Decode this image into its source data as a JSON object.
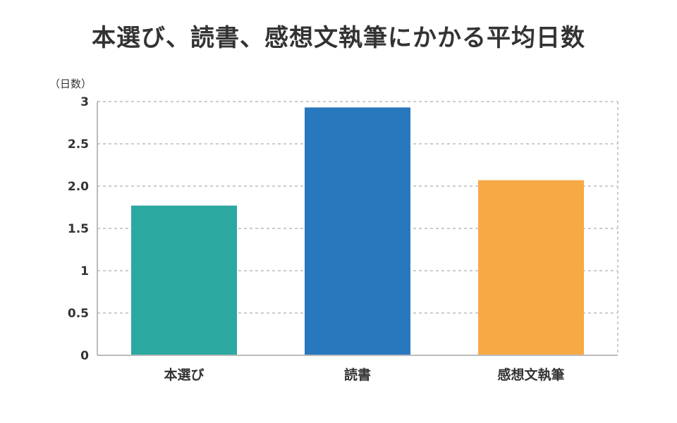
{
  "chart_data": {
    "type": "bar",
    "title": "本選び、読書、感想文執筆にかかる平均日数",
    "ylabel": "（日数）",
    "xlabel": "",
    "categories": [
      "本選び",
      "読書",
      "感想文執筆"
    ],
    "values": [
      1.77,
      2.93,
      2.07
    ],
    "colors": [
      "#2ba8a0",
      "#2878be",
      "#f6a945"
    ],
    "ylim": [
      0,
      3
    ],
    "yticks": [
      "0",
      "0.5",
      "1",
      "1.5",
      "2.0",
      "2.5",
      "3"
    ],
    "grid": true,
    "legend": "none"
  }
}
